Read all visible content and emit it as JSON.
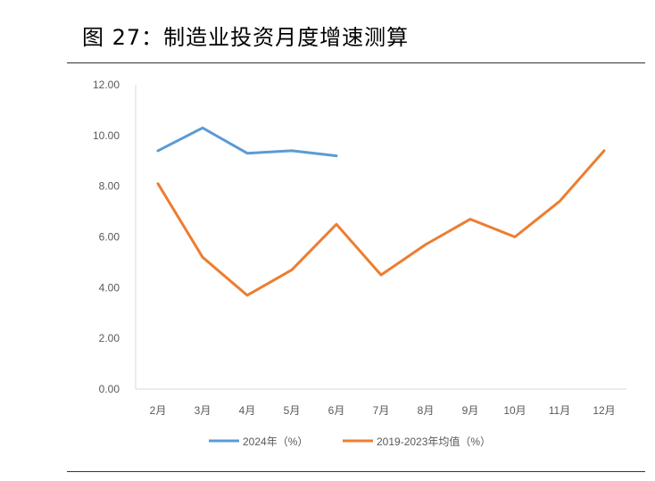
{
  "figure": {
    "title": "图 27：制造业投资月度增速测算"
  },
  "colors": {
    "series_2024": "#5B9BD5",
    "series_avg": "#ED7D31",
    "axis": "#D9D9D9",
    "tick_text": "#595959"
  },
  "chart_data": {
    "type": "line",
    "title": "",
    "xlabel": "",
    "ylabel": "",
    "categories": [
      "2月",
      "3月",
      "4月",
      "5月",
      "6月",
      "7月",
      "8月",
      "9月",
      "10月",
      "11月",
      "12月"
    ],
    "ylim": [
      0,
      12
    ],
    "yticks": [
      "0.00",
      "2.00",
      "4.00",
      "6.00",
      "8.00",
      "10.00",
      "12.00"
    ],
    "grid": false,
    "legend_position": "bottom",
    "series": [
      {
        "name": "2024年（%）",
        "color": "#5B9BD5",
        "values": [
          9.4,
          10.3,
          9.3,
          9.4,
          9.2,
          null,
          null,
          null,
          null,
          null,
          null
        ]
      },
      {
        "name": "2019-2023年均值（%）",
        "color": "#ED7D31",
        "values": [
          8.1,
          5.2,
          3.7,
          4.7,
          6.5,
          4.5,
          5.7,
          6.7,
          6.0,
          7.4,
          9.4
        ]
      }
    ]
  }
}
